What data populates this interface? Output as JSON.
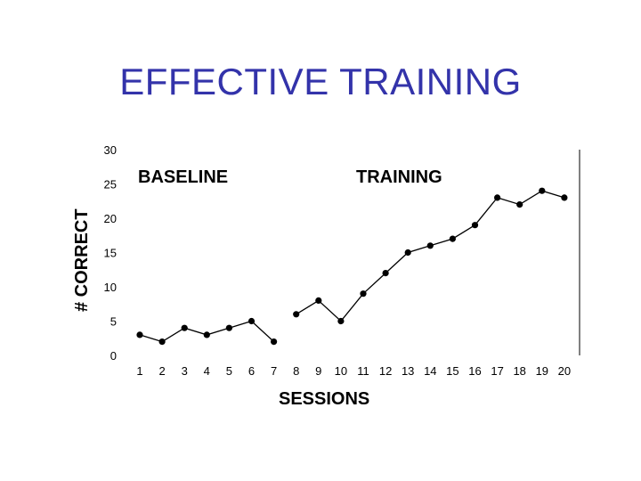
{
  "slide": {
    "title": "EFFECTIVE TRAINING"
  },
  "chart_data": {
    "type": "line",
    "xlabel": "SESSIONS",
    "ylabel": "# CORRECT",
    "ylim": [
      0,
      30
    ],
    "yticks": [
      0,
      5,
      10,
      15,
      20,
      25,
      30
    ],
    "xticks": [
      1,
      2,
      3,
      4,
      5,
      6,
      7,
      8,
      9,
      10,
      11,
      12,
      13,
      14,
      15,
      16,
      17,
      18,
      19,
      20
    ],
    "grid": false,
    "phase_labels": [
      "BASELINE",
      "TRAINING"
    ],
    "series": [
      {
        "phase": "BASELINE",
        "x": [
          1,
          2,
          3,
          4,
          5,
          6,
          7
        ],
        "y": [
          3,
          2,
          4,
          3,
          4,
          5,
          2
        ]
      },
      {
        "phase": "TRAINING",
        "x": [
          8,
          9,
          10,
          11,
          12,
          13,
          14,
          15,
          16,
          17,
          18,
          19,
          20
        ],
        "y": [
          6,
          8,
          5,
          9,
          12,
          15,
          16,
          17,
          19,
          23,
          22,
          24,
          23
        ]
      }
    ],
    "colors": {
      "line": "#000000",
      "title": "#3333aa"
    }
  }
}
